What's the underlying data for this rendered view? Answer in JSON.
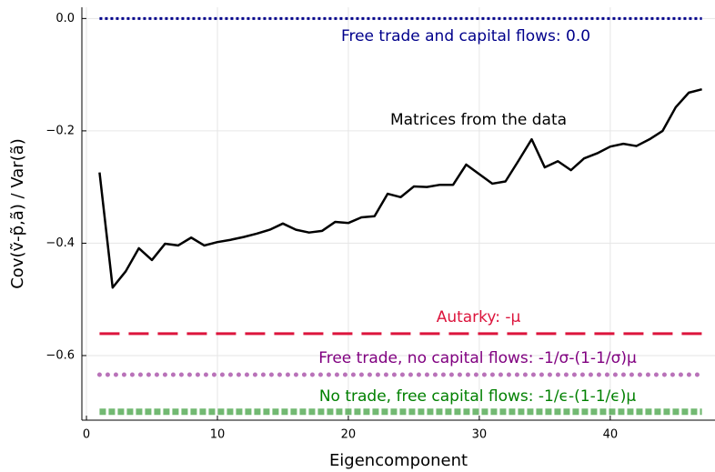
{
  "chart_data": {
    "type": "line",
    "xlabel": "Eigencomponent",
    "ylabel": "Cov(ṽ-p̃,ã) / Var(ã)",
    "x": [
      1,
      2,
      3,
      4,
      5,
      6,
      7,
      8,
      9,
      10,
      11,
      12,
      13,
      14,
      15,
      16,
      17,
      18,
      19,
      20,
      21,
      22,
      23,
      24,
      25,
      26,
      27,
      28,
      29,
      30,
      31,
      32,
      33,
      34,
      35,
      36,
      37,
      38,
      39,
      40,
      41,
      42,
      43,
      44,
      45,
      46,
      47
    ],
    "series": [
      {
        "name": "Matrices from the data",
        "color": "#000000",
        "values": [
          -0.274,
          -0.479,
          -0.45,
          -0.409,
          -0.43,
          -0.401,
          -0.404,
          -0.39,
          -0.404,
          -0.398,
          -0.394,
          -0.389,
          -0.383,
          -0.376,
          -0.365,
          -0.376,
          -0.381,
          -0.378,
          -0.362,
          -0.364,
          -0.354,
          -0.352,
          -0.312,
          -0.318,
          -0.299,
          -0.3,
          -0.296,
          -0.296,
          -0.26,
          -0.277,
          -0.294,
          -0.29,
          -0.253,
          -0.215,
          -0.265,
          -0.254,
          -0.27,
          -0.249,
          -0.24,
          -0.228,
          -0.223,
          -0.227,
          -0.215,
          -0.2,
          -0.158,
          -0.132,
          -0.126
        ]
      }
    ],
    "hlines": [
      {
        "value": 0.0,
        "label": "Free trade and capital flows: 0.0",
        "color": "#00008b",
        "style": "dotted"
      },
      {
        "value": -0.561,
        "label": "Autarky: -μ",
        "color": "#dc143c",
        "style": "dashed"
      },
      {
        "value": -0.634,
        "label": "Free trade, no capital flows: -1/σ-(1-1/σ)μ",
        "color": "#800080",
        "style": "circles"
      },
      {
        "value": -0.7,
        "label": "No trade, free capital flows: -1/ϵ-(1-1/ϵ)μ",
        "color": "#008000",
        "style": "squares"
      }
    ],
    "xlim": [
      -0.35,
      48
    ],
    "ylim": [
      -0.715,
      0.02
    ],
    "xticks": [
      0,
      10,
      20,
      30,
      40
    ],
    "yticks": [
      {
        "value": 0.0,
        "label": "0.0"
      },
      {
        "value": -0.2,
        "label": "−0.2"
      },
      {
        "value": -0.4,
        "label": "−0.4"
      },
      {
        "value": -0.6,
        "label": "−0.6"
      }
    ],
    "grid": true
  }
}
